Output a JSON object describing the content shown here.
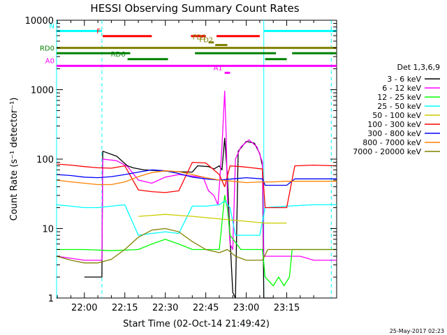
{
  "chart_data": {
    "type": "line",
    "title": "HESSI Observing Summary Count Rates",
    "xlabel": "Start Time (02-Oct-14 21:49:42)",
    "ylabel": "Count Rate (s⁻¹ detector⁻¹)",
    "y_scale": "log",
    "ylim": [
      1,
      10000
    ],
    "xlim_minutes_of_day": [
      1309.7,
      1413.5
    ],
    "x_ticks": [
      {
        "m": 1320,
        "label": "22:00"
      },
      {
        "m": 1335,
        "label": "22:15"
      },
      {
        "m": 1350,
        "label": "22:30"
      },
      {
        "m": 1365,
        "label": "22:45"
      },
      {
        "m": 1380,
        "label": "23:00"
      },
      {
        "m": 1395,
        "label": "23:15"
      }
    ],
    "y_ticks": [
      {
        "v": 1,
        "label": "1"
      },
      {
        "v": 10,
        "label": "10"
      },
      {
        "v": 100,
        "label": "100"
      },
      {
        "v": 1000,
        "label": "1000"
      },
      {
        "v": 10000,
        "label": "10000"
      }
    ],
    "legend_title": "Det 1,3,6,9",
    "legend_position": "right",
    "grid": false,
    "series": [
      {
        "name": "3 - 6 keV",
        "color": "#000000",
        "points": [
          [
            1320,
            2
          ],
          [
            1326.5,
            2
          ],
          [
            1326.8,
            130
          ],
          [
            1332,
            110
          ],
          [
            1334.5,
            90
          ],
          [
            1336,
            80
          ],
          [
            1338,
            75
          ],
          [
            1342,
            70
          ],
          [
            1348,
            68
          ],
          [
            1354,
            66
          ],
          [
            1360,
            65
          ],
          [
            1362,
            80
          ],
          [
            1366,
            78
          ],
          [
            1368,
            72
          ],
          [
            1370,
            80
          ],
          [
            1371,
            70
          ],
          [
            1372,
            200
          ],
          [
            1373,
            60
          ],
          [
            1374,
            7
          ],
          [
            1375,
            1.2
          ],
          [
            1376,
            1.0
          ],
          [
            1377,
            130
          ],
          [
            1380,
            180
          ],
          [
            1383,
            170
          ],
          [
            1385,
            120
          ],
          [
            1386,
            80
          ],
          [
            1386.5,
            1
          ],
          [
            1390,
            1
          ]
        ]
      },
      {
        "name": "6 - 12 keV",
        "color": "#ff00ff",
        "points": [
          [
            1309.7,
            4
          ],
          [
            1320,
            3.5
          ],
          [
            1326.5,
            3.5
          ],
          [
            1326.8,
            100
          ],
          [
            1332,
            95
          ],
          [
            1336,
            78
          ],
          [
            1340,
            50
          ],
          [
            1345,
            45
          ],
          [
            1350,
            55
          ],
          [
            1355,
            60
          ],
          [
            1360,
            57
          ],
          [
            1364,
            55
          ],
          [
            1366,
            35
          ],
          [
            1368,
            30
          ],
          [
            1369.5,
            22
          ],
          [
            1370,
            40
          ],
          [
            1371,
            150
          ],
          [
            1372,
            950
          ],
          [
            1372.6,
            200
          ],
          [
            1373,
            30
          ],
          [
            1374,
            6
          ],
          [
            1375,
            5
          ],
          [
            1376,
            100
          ],
          [
            1378,
            150
          ],
          [
            1381,
            190
          ],
          [
            1384,
            150
          ],
          [
            1386,
            90
          ],
          [
            1386.5,
            4
          ],
          [
            1400,
            4
          ],
          [
            1405,
            3.5
          ],
          [
            1413.5,
            3.5
          ]
        ]
      },
      {
        "name": "12 - 25 keV",
        "color": "#00ff00",
        "points": [
          [
            1309.7,
            5
          ],
          [
            1320,
            5
          ],
          [
            1330,
            4.8
          ],
          [
            1340,
            5
          ],
          [
            1345,
            6
          ],
          [
            1350,
            7
          ],
          [
            1355,
            6
          ],
          [
            1360,
            5
          ],
          [
            1365,
            5
          ],
          [
            1370,
            5
          ],
          [
            1372,
            30
          ],
          [
            1373,
            20
          ],
          [
            1374,
            8
          ],
          [
            1378,
            5
          ],
          [
            1384,
            5
          ],
          [
            1386,
            5
          ],
          [
            1387,
            2
          ],
          [
            1390,
            1.5
          ],
          [
            1392,
            2
          ],
          [
            1394,
            1.5
          ],
          [
            1396,
            2
          ],
          [
            1397,
            5
          ],
          [
            1405,
            5
          ],
          [
            1413.5,
            5
          ]
        ]
      },
      {
        "name": "25 - 50 keV",
        "color": "#00ffff",
        "points": [
          [
            1309.7,
            22
          ],
          [
            1315,
            21
          ],
          [
            1320,
            20
          ],
          [
            1325,
            20
          ],
          [
            1330,
            21
          ],
          [
            1335,
            22
          ],
          [
            1340,
            8
          ],
          [
            1345,
            8.5
          ],
          [
            1350,
            9
          ],
          [
            1355,
            8.5
          ],
          [
            1360,
            21
          ],
          [
            1365,
            21
          ],
          [
            1370,
            22
          ],
          [
            1372,
            25
          ],
          [
            1374,
            20
          ],
          [
            1376,
            8
          ],
          [
            1380,
            8
          ],
          [
            1385,
            8
          ],
          [
            1387,
            20
          ],
          [
            1395,
            21
          ],
          [
            1405,
            22
          ],
          [
            1413.5,
            22
          ]
        ]
      },
      {
        "name": "50 - 100 keV",
        "color": "#cccc00",
        "points": [
          [
            1340,
            15
          ],
          [
            1345,
            15.5
          ],
          [
            1350,
            16
          ],
          [
            1355,
            15.5
          ],
          [
            1360,
            15
          ],
          [
            1387,
            12
          ],
          [
            1395,
            12
          ]
        ]
      },
      {
        "name": "100 - 300 keV",
        "color": "#ff0000",
        "points": [
          [
            1309.7,
            85
          ],
          [
            1315,
            82
          ],
          [
            1320,
            78
          ],
          [
            1325,
            75
          ],
          [
            1330,
            74
          ],
          [
            1335,
            80
          ],
          [
            1340,
            36
          ],
          [
            1345,
            34
          ],
          [
            1350,
            33
          ],
          [
            1355,
            35
          ],
          [
            1360,
            90
          ],
          [
            1365,
            88
          ],
          [
            1368,
            70
          ],
          [
            1370,
            60
          ],
          [
            1372,
            40
          ],
          [
            1374,
            80
          ],
          [
            1378,
            78
          ],
          [
            1382,
            75
          ],
          [
            1386,
            72
          ],
          [
            1387,
            20
          ],
          [
            1395,
            20
          ],
          [
            1398,
            80
          ],
          [
            1405,
            82
          ],
          [
            1413.5,
            80
          ]
        ]
      },
      {
        "name": "300 - 800 keV",
        "color": "#0000ff",
        "points": [
          [
            1309.7,
            60
          ],
          [
            1315,
            58
          ],
          [
            1320,
            55
          ],
          [
            1325,
            54
          ],
          [
            1330,
            56
          ],
          [
            1335,
            60
          ],
          [
            1340,
            65
          ],
          [
            1345,
            70
          ],
          [
            1350,
            68
          ],
          [
            1355,
            62
          ],
          [
            1360,
            55
          ],
          [
            1365,
            52
          ],
          [
            1370,
            50
          ],
          [
            1375,
            52
          ],
          [
            1380,
            54
          ],
          [
            1386,
            52
          ],
          [
            1387,
            42
          ],
          [
            1395,
            42
          ],
          [
            1398,
            52
          ],
          [
            1405,
            52
          ],
          [
            1413.5,
            52
          ]
        ]
      },
      {
        "name": "800 - 7000 keV",
        "color": "#ff8000",
        "points": [
          [
            1309.7,
            50
          ],
          [
            1315,
            47
          ],
          [
            1320,
            45
          ],
          [
            1325,
            43
          ],
          [
            1330,
            43
          ],
          [
            1335,
            47
          ],
          [
            1340,
            56
          ],
          [
            1345,
            64
          ],
          [
            1350,
            68
          ],
          [
            1355,
            66
          ],
          [
            1360,
            60
          ],
          [
            1365,
            54
          ],
          [
            1370,
            50
          ],
          [
            1375,
            48
          ],
          [
            1380,
            46
          ],
          [
            1386,
            47
          ],
          [
            1390,
            47
          ],
          [
            1395,
            48
          ],
          [
            1400,
            48
          ],
          [
            1405,
            48
          ],
          [
            1413.5,
            48
          ]
        ]
      },
      {
        "name": "7000 - 20000 keV",
        "color": "#808000",
        "points": [
          [
            1309.7,
            4
          ],
          [
            1315,
            3.5
          ],
          [
            1320,
            3.2
          ],
          [
            1325,
            3.2
          ],
          [
            1330,
            3.6
          ],
          [
            1335,
            5
          ],
          [
            1340,
            7.5
          ],
          [
            1345,
            9.5
          ],
          [
            1350,
            10
          ],
          [
            1355,
            9
          ],
          [
            1360,
            6.5
          ],
          [
            1365,
            5
          ],
          [
            1370,
            4.5
          ],
          [
            1373,
            5
          ],
          [
            1376,
            4
          ],
          [
            1380,
            3.5
          ],
          [
            1386,
            3.5
          ],
          [
            1388,
            5
          ],
          [
            1395,
            5
          ],
          [
            1405,
            5
          ],
          [
            1413.5,
            5
          ]
        ]
      }
    ],
    "flag_bars": [
      {
        "label": "N",
        "color": "#00ffff",
        "value": 7000,
        "segments": [
          [
            1309.7,
            1326.5
          ],
          [
            1386.5,
            1413.5
          ]
        ]
      },
      {
        "label": "F",
        "color": "#ff0000",
        "value": 5900,
        "segments": [
          [
            1326.8,
            1345
          ],
          [
            1359.5,
            1365
          ],
          [
            1369,
            1385
          ]
        ]
      },
      {
        "label": "FD1",
        "color": "#808000",
        "value": 4800,
        "segments": [
          [
            1366,
            1368
          ]
        ]
      },
      {
        "label": "FD2",
        "color": "#808000",
        "value": 4400,
        "segments": [
          [
            1368.5,
            1373
          ]
        ]
      },
      {
        "label": "",
        "color": "#808000",
        "value": 4000,
        "segments": [
          [
            1309.7,
            1413.5
          ]
        ]
      },
      {
        "label": "RD0",
        "color": "#008000",
        "value": 3350,
        "segments": [
          [
            1309.7,
            1337
          ],
          [
            1361,
            1391
          ],
          [
            1397,
            1413.5
          ]
        ]
      },
      {
        "label": "RD6",
        "color": "#008000",
        "value": 2750,
        "segments": [
          [
            1336,
            1351
          ],
          [
            1387,
            1395
          ]
        ]
      },
      {
        "label": "A0",
        "color": "#ff00ff",
        "value": 2200,
        "segments": [
          [
            1309.7,
            1413.5
          ]
        ]
      },
      {
        "label": "A1",
        "color": "#ff00ff",
        "value": 1750,
        "segments": [
          [
            1372,
            1374
          ]
        ]
      }
    ],
    "vertical_lines": [
      {
        "m": 1309.7,
        "color": "#00ffff",
        "style": "solid"
      },
      {
        "m": 1326.5,
        "color": "#00ffff",
        "style": "dashed"
      },
      {
        "m": 1386.5,
        "color": "#00ffff",
        "style": "solid"
      },
      {
        "m": 1411.5,
        "color": "#00ffff",
        "style": "dashed"
      }
    ]
  },
  "footer_date": "25-May-2017 02:23"
}
